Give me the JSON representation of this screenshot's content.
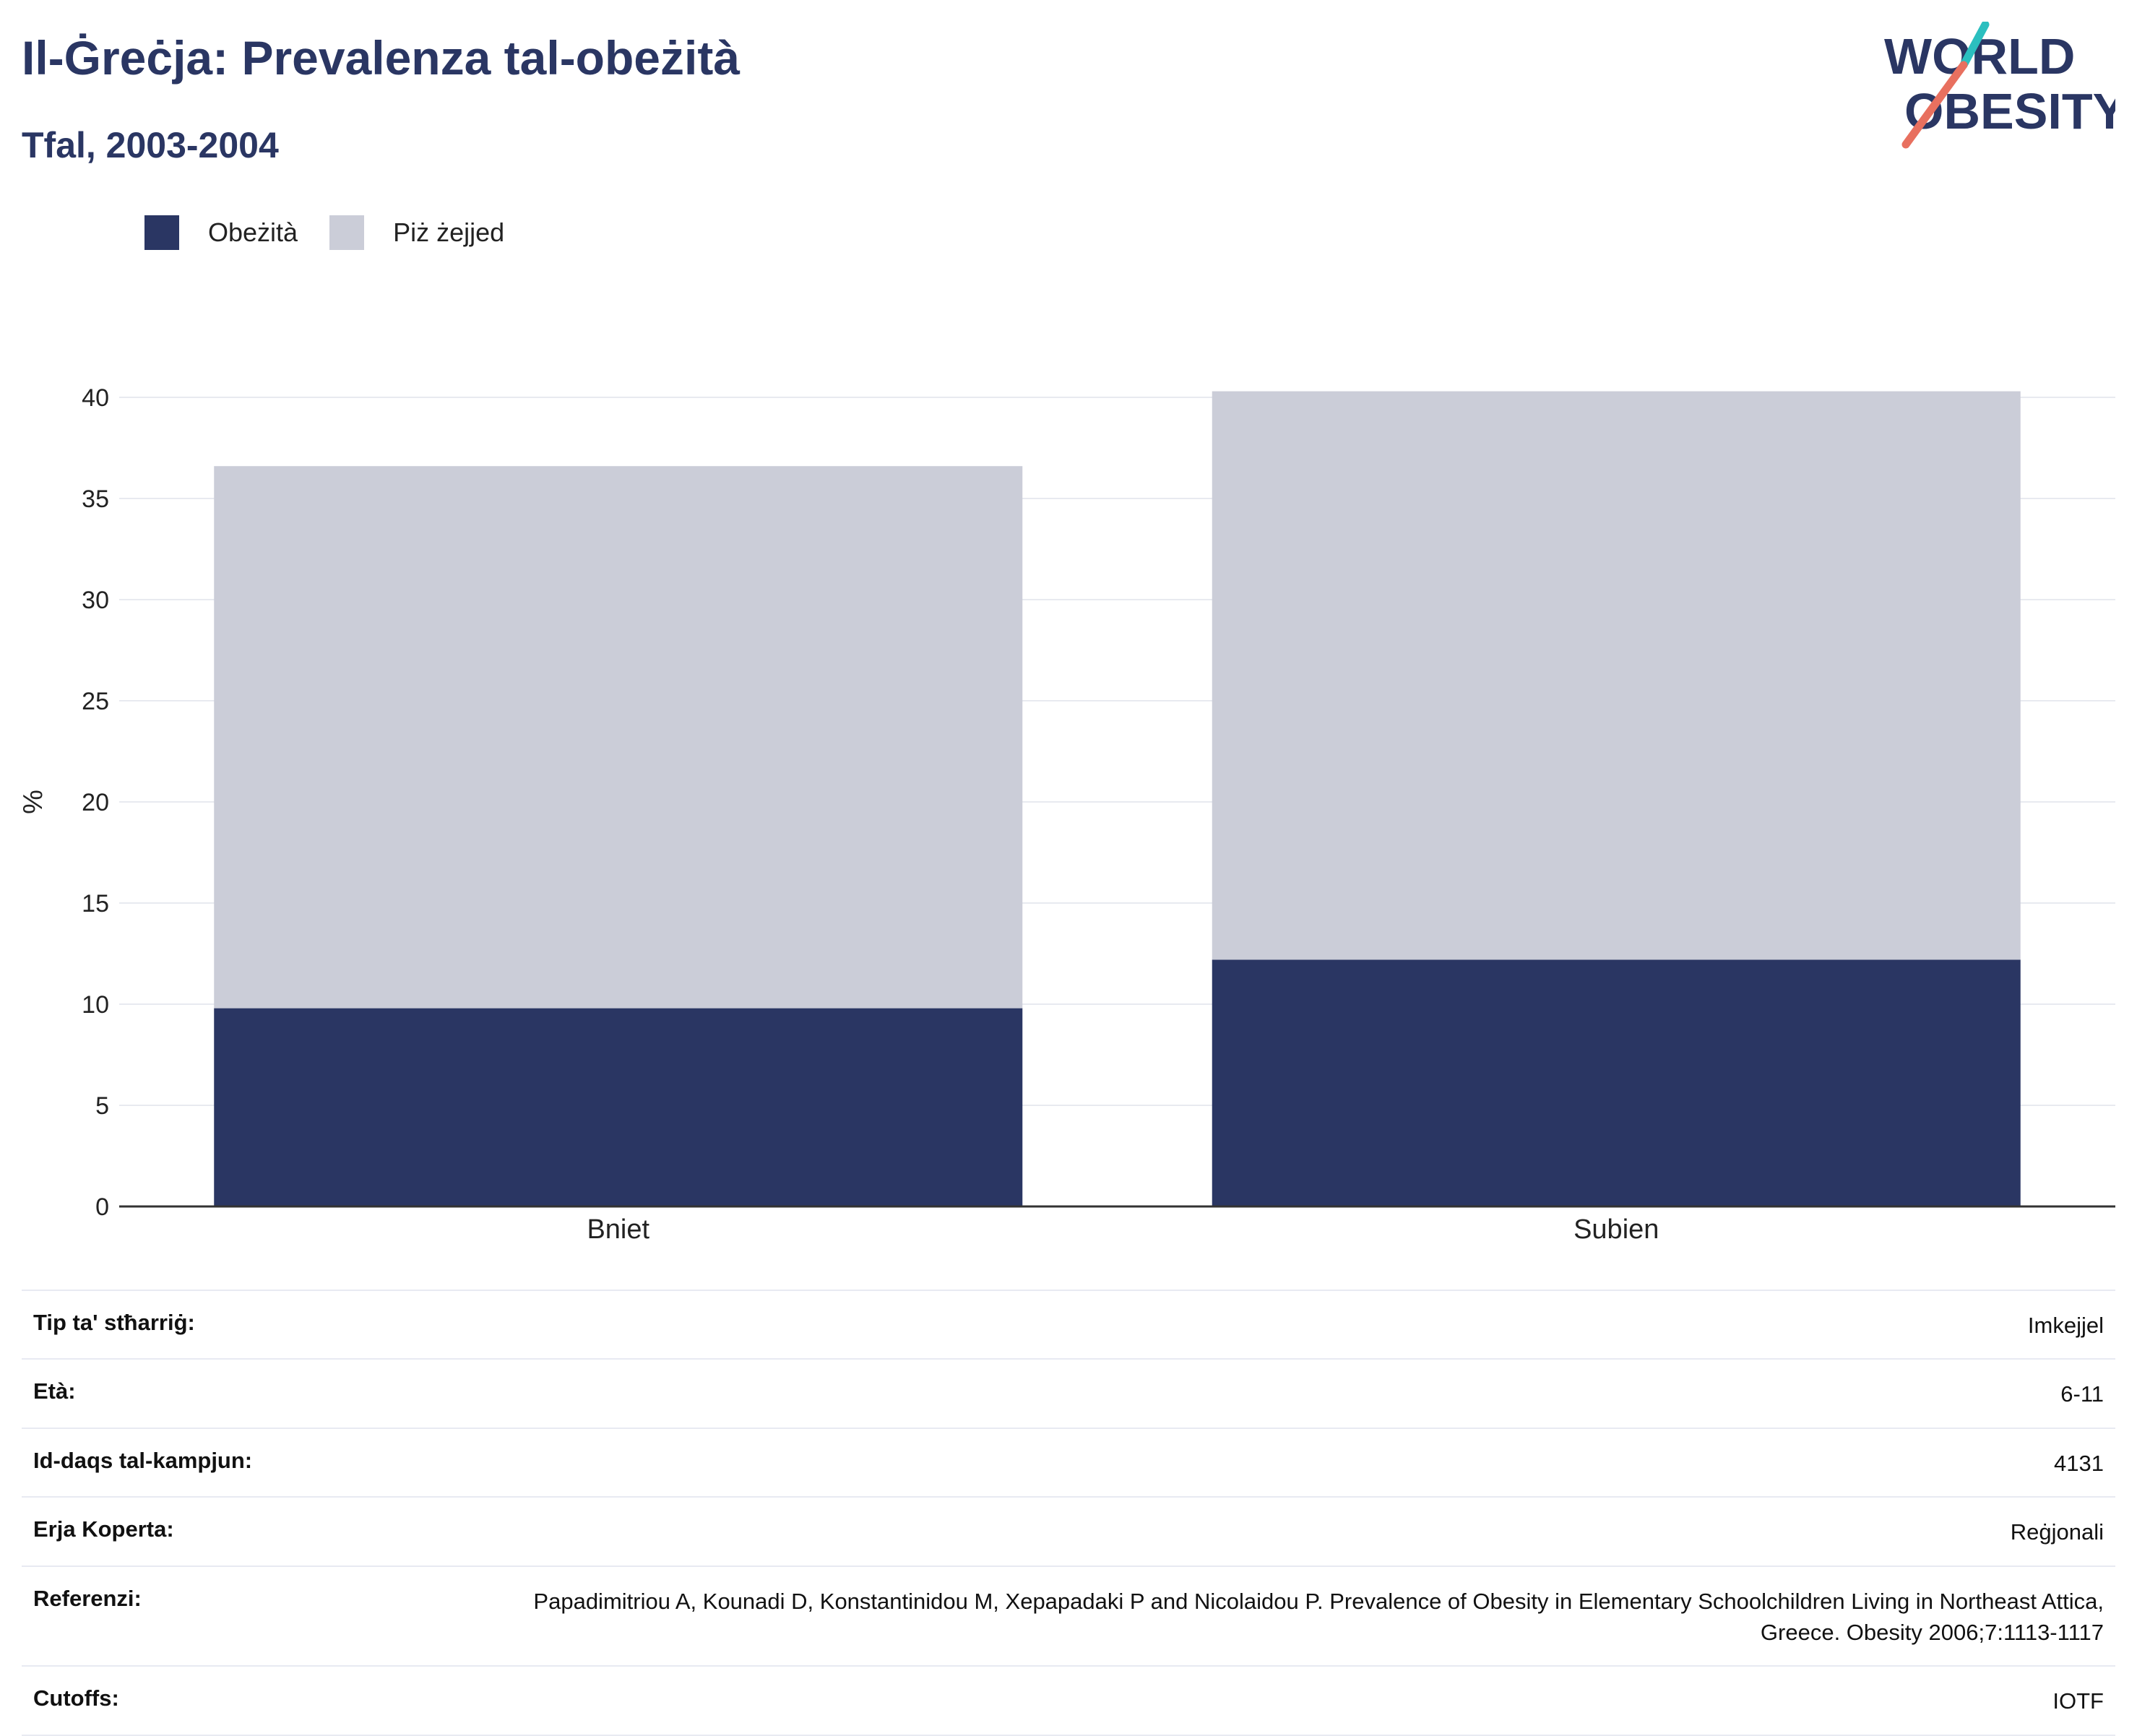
{
  "header": {
    "title": "Il-Ġreċja: Prevalenza tal-obeżità",
    "subtitle": "Tfal, 2003-2004"
  },
  "logo": {
    "line1": "WORLD",
    "line2": "OBESITY"
  },
  "colors": {
    "obesity": "#2a3663",
    "overweight": "#cbcdd8",
    "text": "#2a3663",
    "grid": "#e8eaf0",
    "logo_teal": "#2bbfbf",
    "logo_coral": "#e8705f"
  },
  "chart_data": {
    "type": "bar",
    "stacked": true,
    "categories": [
      "Bniet",
      "Subien"
    ],
    "series": [
      {
        "name": "Obeżità",
        "values": [
          9.8,
          12.2
        ]
      },
      {
        "name": "Piż żejjed",
        "values": [
          26.8,
          28.1
        ]
      }
    ],
    "ylabel": "%",
    "ylim": [
      0,
      40
    ],
    "yticks": [
      0,
      5,
      10,
      15,
      20,
      25,
      30,
      35,
      40
    ],
    "grid": true,
    "legend_position": "top-left"
  },
  "info": [
    {
      "label": "Tip ta' stħarriġ:",
      "value": "Imkejjel"
    },
    {
      "label": "Età:",
      "value": "6-11"
    },
    {
      "label": "Id-daqs tal-kampjun:",
      "value": "4131"
    },
    {
      "label": "Erja Koperta:",
      "value": "Reġjonali"
    },
    {
      "label": "Referenzi:",
      "value": "Papadimitriou A, Kounadi D, Konstantinidou M, Xepapadaki P and Nicolaidou P. Prevalence of Obesity in Elementary Schoolchildren Living in Northeast Attica, Greece. Obesity 2006;7:1113-1117"
    },
    {
      "label": "Cutoffs:",
      "value": "IOTF"
    }
  ]
}
